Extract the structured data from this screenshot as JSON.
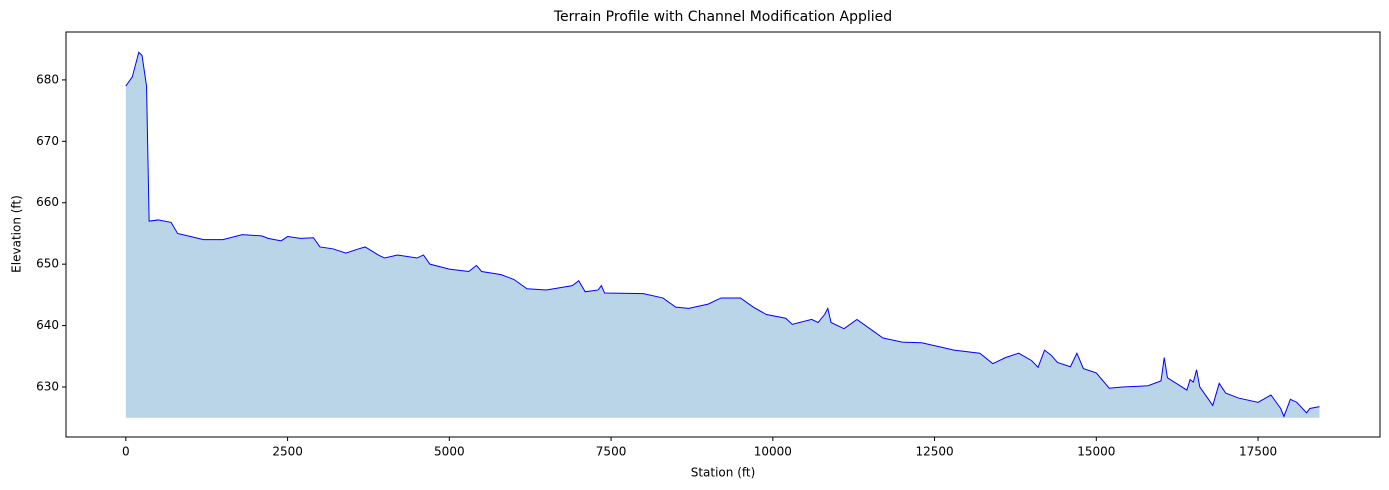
{
  "chart_data": {
    "type": "area",
    "title": "Terrain Profile with Channel Modification Applied",
    "xlabel": "Station (ft)",
    "ylabel": "Elevation (ft)",
    "x": [
      0,
      100,
      200,
      250,
      320,
      360,
      500,
      700,
      800,
      1000,
      1200,
      1500,
      1800,
      2100,
      2200,
      2400,
      2500,
      2700,
      2900,
      3000,
      3200,
      3400,
      3600,
      3700,
      3900,
      4000,
      4200,
      4500,
      4600,
      4700,
      5000,
      5300,
      5420,
      5500,
      5800,
      6000,
      6200,
      6500,
      6900,
      7000,
      7100,
      7300,
      7350,
      7400,
      8000,
      8300,
      8500,
      8700,
      9000,
      9200,
      9500,
      9700,
      9900,
      10200,
      10300,
      10600,
      10700,
      10800,
      10850,
      10900,
      11100,
      11300,
      11500,
      11700,
      12000,
      12300,
      12600,
      12800,
      13200,
      13400,
      13600,
      13800,
      14000,
      14100,
      14200,
      14300,
      14400,
      14600,
      14700,
      14800,
      15000,
      15200,
      15400,
      15800,
      16000,
      16050,
      16100,
      16400,
      16450,
      16500,
      16550,
      16600,
      16700,
      16800,
      16900,
      17000,
      17200,
      17500,
      17700,
      17850,
      17900,
      18000,
      18100,
      18250,
      18300,
      18450
    ],
    "series": [
      {
        "name": "Elevation",
        "color": "#0000ff",
        "fill": "#bad5e8",
        "values": [
          679,
          680.5,
          684.5,
          684,
          679,
          657,
          657.2,
          656.8,
          655,
          654.5,
          654,
          654,
          654.8,
          654.6,
          654.2,
          653.8,
          654.5,
          654.2,
          654.3,
          652.8,
          652.5,
          651.8,
          652.5,
          652.8,
          651.5,
          651,
          651.5,
          651,
          651.5,
          650,
          649.2,
          648.8,
          649.8,
          648.8,
          648.3,
          647.5,
          646,
          645.8,
          646.5,
          647.3,
          645.5,
          645.8,
          646.5,
          645.3,
          645.2,
          644.5,
          643,
          642.8,
          643.5,
          644.5,
          644.5,
          643,
          641.8,
          641.2,
          640.2,
          641,
          640.5,
          641.8,
          642.8,
          640.5,
          639.5,
          641,
          639.5,
          638,
          637.3,
          637.2,
          636.5,
          636,
          635.5,
          633.8,
          634.8,
          635.5,
          634.3,
          633.2,
          636,
          635.2,
          634,
          633.3,
          635.5,
          633,
          632.3,
          629.8,
          630,
          630.2,
          631,
          634.8,
          631.5,
          629.5,
          631.2,
          630.8,
          632.8,
          630,
          628.5,
          627,
          630.6,
          629,
          628.2,
          627.5,
          628.7,
          626.5,
          625.2,
          628,
          627.5,
          625.8,
          626.5,
          626.8
        ]
      }
    ],
    "fill_to": 625,
    "xlim": [
      -925,
      19385
    ],
    "ylim": [
      621.86,
      687.8
    ],
    "xticks": [
      0,
      2500,
      5000,
      7500,
      10000,
      12500,
      15000,
      17500
    ],
    "yticks": [
      630,
      640,
      650,
      660,
      670,
      680
    ]
  }
}
